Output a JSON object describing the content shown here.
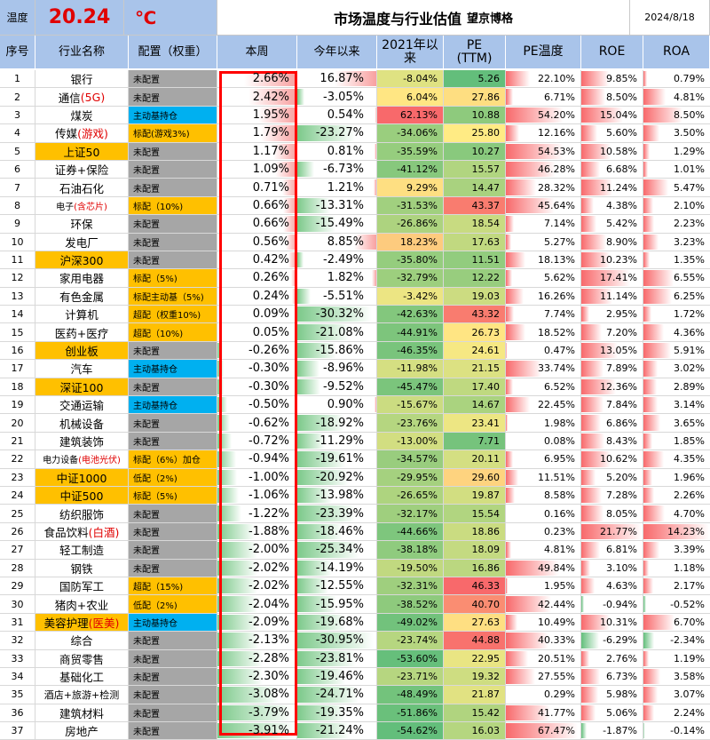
{
  "title": {
    "label": "温度",
    "temperature": "20.24",
    "unit": "℃",
    "main": "市场温度与行业估值",
    "sub": "望京博格",
    "date": "2024/8/18"
  },
  "columns": {
    "idx": "序号",
    "name": "行业名称",
    "cfg": "配置（权重）",
    "week": "本周",
    "ytd": "今年以来",
    "since2021_a": "2021年以",
    "since2021_b": "来",
    "pe_a": "PE",
    "pe_b": "(TTM)",
    "pe_temp": "PE温度",
    "roe": "ROE",
    "roa": "ROA"
  },
  "colors": {
    "header_bg": "#a9c4ea",
    "highlight": "#ffc000",
    "fund_blue": "#00b0f0",
    "none_gray": "#a6a6a6",
    "red": "#e00000",
    "frame": "#ff0000"
  },
  "rows": [
    {
      "idx": "1",
      "name": "银行",
      "name_tag": "",
      "hl": false,
      "cfg": "未配置",
      "cfg_type": "none",
      "week": "2.66%",
      "ytd": "16.87%",
      "since": "-8.04%",
      "pe": "5.26",
      "pe_temp": "22.10%",
      "roe": "9.85%",
      "roa": "0.79%"
    },
    {
      "idx": "2",
      "name": "通信",
      "name_tag": "(5G)",
      "hl": false,
      "cfg": "未配置",
      "cfg_type": "none",
      "week": "2.42%",
      "ytd": "-3.05%",
      "since": "6.04%",
      "pe": "27.86",
      "pe_temp": "6.71%",
      "roe": "8.50%",
      "roa": "4.81%"
    },
    {
      "idx": "3",
      "name": "煤炭",
      "name_tag": "",
      "hl": false,
      "cfg": "主动基持仓",
      "cfg_type": "fund",
      "week": "1.95%",
      "ytd": "0.54%",
      "since": "62.13%",
      "pe": "10.88",
      "pe_temp": "54.20%",
      "roe": "15.04%",
      "roa": "8.50%"
    },
    {
      "idx": "4",
      "name": "传媒",
      "name_tag": "(游戏)",
      "hl": false,
      "cfg": "标配(游戏3%)",
      "cfg_type": "std",
      "week": "1.79%",
      "ytd": "-23.27%",
      "since": "-34.06%",
      "pe": "25.80",
      "pe_temp": "12.16%",
      "roe": "5.60%",
      "roa": "3.50%"
    },
    {
      "idx": "5",
      "name": "上证50",
      "name_tag": "",
      "hl": true,
      "cfg": "未配置",
      "cfg_type": "none",
      "week": "1.17%",
      "ytd": "0.81%",
      "since": "-35.59%",
      "pe": "10.27",
      "pe_temp": "54.53%",
      "roe": "10.58%",
      "roa": "1.29%"
    },
    {
      "idx": "6",
      "name": "证券+保险",
      "name_tag": "",
      "hl": false,
      "cfg": "未配置",
      "cfg_type": "none",
      "week": "1.09%",
      "ytd": "-6.73%",
      "since": "-41.12%",
      "pe": "15.57",
      "pe_temp": "46.28%",
      "roe": "6.68%",
      "roa": "1.01%"
    },
    {
      "idx": "7",
      "name": "石油石化",
      "name_tag": "",
      "hl": false,
      "cfg": "未配置",
      "cfg_type": "none",
      "week": "0.71%",
      "ytd": "1.21%",
      "since": "9.29%",
      "pe": "14.47",
      "pe_temp": "28.32%",
      "roe": "11.24%",
      "roa": "5.47%"
    },
    {
      "idx": "8",
      "name": "电子",
      "name_tag": "(含芯片)",
      "hl": false,
      "cfg": "标配（10%)",
      "cfg_type": "std",
      "week": "0.66%",
      "ytd": "-13.31%",
      "since": "-31.53%",
      "pe": "43.37",
      "pe_temp": "45.64%",
      "roe": "4.38%",
      "roa": "2.10%"
    },
    {
      "idx": "9",
      "name": "环保",
      "name_tag": "",
      "hl": false,
      "cfg": "未配置",
      "cfg_type": "none",
      "week": "0.66%",
      "ytd": "-15.49%",
      "since": "-26.86%",
      "pe": "18.54",
      "pe_temp": "7.14%",
      "roe": "5.42%",
      "roa": "2.23%"
    },
    {
      "idx": "10",
      "name": "发电厂",
      "name_tag": "",
      "hl": false,
      "cfg": "未配置",
      "cfg_type": "none",
      "week": "0.56%",
      "ytd": "8.85%",
      "since": "18.23%",
      "pe": "17.63",
      "pe_temp": "5.27%",
      "roe": "8.90%",
      "roa": "3.23%"
    },
    {
      "idx": "11",
      "name": "沪深300",
      "name_tag": "",
      "hl": true,
      "cfg": "未配置",
      "cfg_type": "none",
      "week": "0.42%",
      "ytd": "-2.49%",
      "since": "-35.80%",
      "pe": "11.51",
      "pe_temp": "18.13%",
      "roe": "10.23%",
      "roa": "1.35%"
    },
    {
      "idx": "12",
      "name": "家用电器",
      "name_tag": "",
      "hl": false,
      "cfg": "标配（5%)",
      "cfg_type": "std",
      "week": "0.26%",
      "ytd": "1.82%",
      "since": "-32.79%",
      "pe": "12.22",
      "pe_temp": "5.62%",
      "roe": "17.41%",
      "roa": "6.55%"
    },
    {
      "idx": "13",
      "name": "有色金属",
      "name_tag": "",
      "hl": false,
      "cfg": "标配主动基（5%)",
      "cfg_type": "std",
      "week": "0.24%",
      "ytd": "-5.51%",
      "since": "-3.42%",
      "pe": "19.03",
      "pe_temp": "16.26%",
      "roe": "11.14%",
      "roa": "6.25%"
    },
    {
      "idx": "14",
      "name": "计算机",
      "name_tag": "",
      "hl": false,
      "cfg": "超配（权重10%)",
      "cfg_type": "over",
      "week": "0.09%",
      "ytd": "-30.32%",
      "since": "-42.63%",
      "pe": "43.32",
      "pe_temp": "7.74%",
      "roe": "2.95%",
      "roa": "1.72%"
    },
    {
      "idx": "15",
      "name": "医药+医疗",
      "name_tag": "",
      "hl": false,
      "cfg": "超配（10%)",
      "cfg_type": "over",
      "week": "0.05%",
      "ytd": "-21.08%",
      "since": "-44.91%",
      "pe": "26.73",
      "pe_temp": "18.52%",
      "roe": "7.20%",
      "roa": "4.36%"
    },
    {
      "idx": "16",
      "name": "创业板",
      "name_tag": "",
      "hl": true,
      "cfg": "未配置",
      "cfg_type": "none",
      "week": "-0.26%",
      "ytd": "-15.86%",
      "since": "-46.35%",
      "pe": "24.61",
      "pe_temp": "0.47%",
      "roe": "13.05%",
      "roa": "5.91%"
    },
    {
      "idx": "17",
      "name": "汽车",
      "name_tag": "",
      "hl": false,
      "cfg": "主动基持仓",
      "cfg_type": "fund",
      "week": "-0.30%",
      "ytd": "-8.96%",
      "since": "-11.98%",
      "pe": "21.15",
      "pe_temp": "33.74%",
      "roe": "7.89%",
      "roa": "3.02%"
    },
    {
      "idx": "18",
      "name": "深证100",
      "name_tag": "",
      "hl": true,
      "cfg": "未配置",
      "cfg_type": "none",
      "week": "-0.30%",
      "ytd": "-9.52%",
      "since": "-45.47%",
      "pe": "17.40",
      "pe_temp": "6.52%",
      "roe": "12.36%",
      "roa": "2.89%"
    },
    {
      "idx": "19",
      "name": "交通运输",
      "name_tag": "",
      "hl": false,
      "cfg": "主动基持仓",
      "cfg_type": "fund",
      "week": "-0.50%",
      "ytd": "0.90%",
      "since": "-15.67%",
      "pe": "14.67",
      "pe_temp": "22.45%",
      "roe": "7.84%",
      "roa": "3.14%"
    },
    {
      "idx": "20",
      "name": "机械设备",
      "name_tag": "",
      "hl": false,
      "cfg": "未配置",
      "cfg_type": "none",
      "week": "-0.62%",
      "ytd": "-18.92%",
      "since": "-23.76%",
      "pe": "23.41",
      "pe_temp": "1.98%",
      "roe": "6.86%",
      "roa": "3.65%"
    },
    {
      "idx": "21",
      "name": "建筑装饰",
      "name_tag": "",
      "hl": false,
      "cfg": "未配置",
      "cfg_type": "none",
      "week": "-0.72%",
      "ytd": "-11.29%",
      "since": "-13.00%",
      "pe": "7.71",
      "pe_temp": "0.08%",
      "roe": "8.43%",
      "roa": "1.85%"
    },
    {
      "idx": "22",
      "name": "电力设备",
      "name_tag": "(电池光伏)",
      "hl": false,
      "cfg": "标配（6%）加仓",
      "cfg_type": "std",
      "week": "-0.94%",
      "ytd": "-19.61%",
      "since": "-34.57%",
      "pe": "20.11",
      "pe_temp": "6.95%",
      "roe": "10.62%",
      "roa": "4.35%"
    },
    {
      "idx": "23",
      "name": "中证1000",
      "name_tag": "",
      "hl": true,
      "cfg": "低配（2%)",
      "cfg_type": "low",
      "week": "-1.00%",
      "ytd": "-20.92%",
      "since": "-29.95%",
      "pe": "29.60",
      "pe_temp": "11.51%",
      "roe": "5.20%",
      "roa": "1.96%"
    },
    {
      "idx": "24",
      "name": "中证500",
      "name_tag": "",
      "hl": true,
      "cfg": "标配（5%)",
      "cfg_type": "std",
      "week": "-1.06%",
      "ytd": "-13.98%",
      "since": "-26.65%",
      "pe": "19.87",
      "pe_temp": "8.58%",
      "roe": "7.28%",
      "roa": "2.26%"
    },
    {
      "idx": "25",
      "name": "纺织服饰",
      "name_tag": "",
      "hl": false,
      "cfg": "未配置",
      "cfg_type": "none",
      "week": "-1.22%",
      "ytd": "-23.39%",
      "since": "-32.17%",
      "pe": "15.54",
      "pe_temp": "0.16%",
      "roe": "8.05%",
      "roa": "4.70%"
    },
    {
      "idx": "26",
      "name": "食品饮料",
      "name_tag": "(白酒)",
      "hl": false,
      "cfg": "未配置",
      "cfg_type": "none",
      "week": "-1.88%",
      "ytd": "-18.46%",
      "since": "-44.66%",
      "pe": "18.86",
      "pe_temp": "0.23%",
      "roe": "21.77%",
      "roa": "14.23%"
    },
    {
      "idx": "27",
      "name": "轻工制造",
      "name_tag": "",
      "hl": false,
      "cfg": "未配置",
      "cfg_type": "none",
      "week": "-2.00%",
      "ytd": "-25.34%",
      "since": "-38.18%",
      "pe": "18.09",
      "pe_temp": "4.81%",
      "roe": "6.81%",
      "roa": "3.39%"
    },
    {
      "idx": "28",
      "name": "钢铁",
      "name_tag": "",
      "hl": false,
      "cfg": "未配置",
      "cfg_type": "none",
      "week": "-2.02%",
      "ytd": "-14.19%",
      "since": "-19.50%",
      "pe": "16.86",
      "pe_temp": "49.84%",
      "roe": "3.10%",
      "roa": "1.18%"
    },
    {
      "idx": "29",
      "name": "国防军工",
      "name_tag": "",
      "hl": false,
      "cfg": "超配（15%)",
      "cfg_type": "over",
      "week": "-2.02%",
      "ytd": "-12.55%",
      "since": "-32.31%",
      "pe": "46.33",
      "pe_temp": "1.95%",
      "roe": "4.63%",
      "roa": "2.17%"
    },
    {
      "idx": "30",
      "name": "猪肉+农业",
      "name_tag": "",
      "hl": false,
      "cfg": "低配（2%)",
      "cfg_type": "low",
      "week": "-2.04%",
      "ytd": "-15.95%",
      "since": "-38.52%",
      "pe": "40.70",
      "pe_temp": "42.44%",
      "roe": "-0.94%",
      "roa": "-0.52%"
    },
    {
      "idx": "31",
      "name": "美容护理",
      "name_tag": "(医美)",
      "hl": true,
      "cfg": "主动基持仓",
      "cfg_type": "fund",
      "week": "-2.09%",
      "ytd": "-19.68%",
      "since": "-49.02%",
      "pe": "27.63",
      "pe_temp": "10.49%",
      "roe": "10.31%",
      "roa": "6.70%"
    },
    {
      "idx": "32",
      "name": "综合",
      "name_tag": "",
      "hl": false,
      "cfg": "未配置",
      "cfg_type": "none",
      "week": "-2.13%",
      "ytd": "-30.95%",
      "since": "-23.74%",
      "pe": "44.88",
      "pe_temp": "40.33%",
      "roe": "-6.29%",
      "roa": "-2.34%"
    },
    {
      "idx": "33",
      "name": "商贸零售",
      "name_tag": "",
      "hl": false,
      "cfg": "未配置",
      "cfg_type": "none",
      "week": "-2.28%",
      "ytd": "-23.81%",
      "since": "-53.60%",
      "pe": "22.95",
      "pe_temp": "20.51%",
      "roe": "2.76%",
      "roa": "1.19%"
    },
    {
      "idx": "34",
      "name": "基础化工",
      "name_tag": "",
      "hl": false,
      "cfg": "未配置",
      "cfg_type": "none",
      "week": "-2.30%",
      "ytd": "-19.46%",
      "since": "-23.71%",
      "pe": "19.32",
      "pe_temp": "27.55%",
      "roe": "6.73%",
      "roa": "3.58%"
    },
    {
      "idx": "35",
      "name": "酒店+旅游+检测",
      "name_tag": "",
      "hl": false,
      "cfg": "未配置",
      "cfg_type": "none",
      "week": "-3.08%",
      "ytd": "-24.71%",
      "since": "-48.49%",
      "pe": "21.87",
      "pe_temp": "0.29%",
      "roe": "5.98%",
      "roa": "3.07%"
    },
    {
      "idx": "36",
      "name": "建筑材料",
      "name_tag": "",
      "hl": false,
      "cfg": "未配置",
      "cfg_type": "none",
      "week": "-3.79%",
      "ytd": "-19.35%",
      "since": "-51.86%",
      "pe": "15.42",
      "pe_temp": "41.77%",
      "roe": "5.06%",
      "roa": "2.24%"
    },
    {
      "idx": "37",
      "name": "房地产",
      "name_tag": "",
      "hl": false,
      "cfg": "未配置",
      "cfg_type": "none",
      "week": "-3.91%",
      "ytd": "-21.24%",
      "since": "-54.62%",
      "pe": "16.03",
      "pe_temp": "67.47%",
      "roe": "-1.87%",
      "roa": "-0.14%"
    }
  ]
}
